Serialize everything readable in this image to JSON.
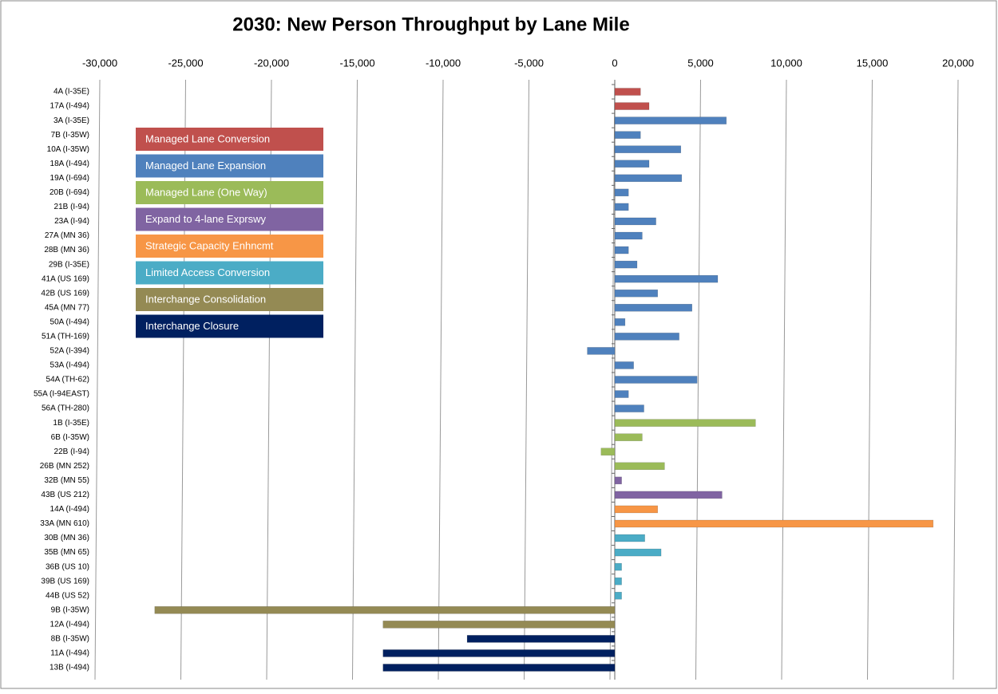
{
  "chart_data": {
    "type": "bar",
    "orientation": "horizontal",
    "title": "2030: New Person Throughput by Lane Mile",
    "categories": [
      "4A (I-35E)",
      "17A (I-494)",
      "3A (I-35E)",
      "7B (I-35W)",
      "10A (I-35W)",
      "18A (I-494)",
      "19A (I-694)",
      "20B (I-694)",
      "21B (I-94)",
      "23A (I-94)",
      "27A (MN 36)",
      "28B (MN 36)",
      "29B (I-35E)",
      "41A (US 169)",
      "42B (US 169)",
      "45A (MN 77)",
      "50A (I-494)",
      "51A (TH-169)",
      "52A (I-394)",
      "53A (I-494)",
      "54A (TH-62)",
      "55A (I-94EAST)",
      "56A (TH-280)",
      "1B (I-35E)",
      "6B (I-35W)",
      "22B (I-94)",
      "26B (MN 252)",
      "32B (MN 55)",
      "43B (US 212)",
      "14A (I-494)",
      "33A (MN 610)",
      "30B (MN 36)",
      "35B (MN 65)",
      "36B (US 10)",
      "39B (US 169)",
      "44B (US 52)",
      "9B (I-35W)",
      "12A (I-494)",
      "8B (I-35W)",
      "11A (I-494)",
      "13B (I-494)"
    ],
    "series": [
      {
        "name": "Managed Lane Conversion",
        "color": "#c0504d",
        "values": [
          1500,
          2000,
          null,
          null,
          null,
          null,
          null,
          null,
          null,
          null,
          null,
          null,
          null,
          null,
          null,
          null,
          null,
          null,
          null,
          null,
          null,
          null,
          null,
          null,
          null,
          null,
          null,
          null,
          null,
          null,
          null,
          null,
          null,
          null,
          null,
          null,
          null,
          null,
          null,
          null,
          null
        ]
      },
      {
        "name": "Managed Lane Expansion",
        "color": "#4f81bd",
        "values": [
          null,
          null,
          6500,
          1500,
          3850,
          2000,
          3900,
          800,
          800,
          2400,
          1600,
          800,
          1300,
          6000,
          2500,
          4500,
          600,
          3750,
          -1600,
          1100,
          4800,
          800,
          1700,
          null,
          null,
          null,
          null,
          null,
          null,
          null,
          null,
          null,
          null,
          null,
          null,
          null,
          null,
          null,
          null,
          null,
          null
        ]
      },
      {
        "name": "Managed Lane (One Way)",
        "color": "#9bbb59",
        "values": [
          null,
          null,
          null,
          null,
          null,
          null,
          null,
          null,
          null,
          null,
          null,
          null,
          null,
          null,
          null,
          null,
          null,
          null,
          null,
          null,
          null,
          null,
          null,
          8200,
          1600,
          -800,
          2900,
          null,
          null,
          null,
          null,
          null,
          null,
          null,
          null,
          null,
          null,
          null,
          null,
          null,
          null
        ]
      },
      {
        "name": "Expand to 4-lane Exprswy",
        "color": "#8064a2",
        "values": [
          null,
          null,
          null,
          null,
          null,
          null,
          null,
          null,
          null,
          null,
          null,
          null,
          null,
          null,
          null,
          null,
          null,
          null,
          null,
          null,
          null,
          null,
          null,
          null,
          null,
          null,
          null,
          400,
          6250,
          null,
          null,
          null,
          null,
          null,
          null,
          null,
          null,
          null,
          null,
          null,
          null
        ]
      },
      {
        "name": "Strategic Capacity Enhncmt",
        "color": "#f79646",
        "values": [
          null,
          null,
          null,
          null,
          null,
          null,
          null,
          null,
          null,
          null,
          null,
          null,
          null,
          null,
          null,
          null,
          null,
          null,
          null,
          null,
          null,
          null,
          null,
          null,
          null,
          null,
          null,
          null,
          null,
          2500,
          18550,
          null,
          null,
          null,
          null,
          null,
          null,
          null,
          null,
          null,
          null
        ]
      },
      {
        "name": "Limited Access Conversion",
        "color": "#4bacc6",
        "values": [
          null,
          null,
          null,
          null,
          null,
          null,
          null,
          null,
          null,
          null,
          null,
          null,
          null,
          null,
          null,
          null,
          null,
          null,
          null,
          null,
          null,
          null,
          null,
          null,
          null,
          null,
          null,
          null,
          null,
          null,
          null,
          1750,
          2700,
          400,
          400,
          400,
          null,
          null,
          null,
          null,
          null
        ]
      },
      {
        "name": "Interchange Consolidation",
        "color": "#948a54",
        "values": [
          null,
          null,
          null,
          null,
          null,
          null,
          null,
          null,
          null,
          null,
          null,
          null,
          null,
          null,
          null,
          null,
          null,
          null,
          null,
          null,
          null,
          null,
          null,
          null,
          null,
          null,
          null,
          null,
          null,
          null,
          null,
          null,
          null,
          null,
          null,
          null,
          -26800,
          -13500,
          null,
          null,
          null
        ]
      },
      {
        "name": "Interchange Closure",
        "color": "#002060",
        "values": [
          null,
          null,
          null,
          null,
          null,
          null,
          null,
          null,
          null,
          null,
          null,
          null,
          null,
          null,
          null,
          null,
          null,
          null,
          null,
          null,
          null,
          null,
          null,
          null,
          null,
          null,
          null,
          null,
          null,
          null,
          null,
          null,
          null,
          null,
          null,
          null,
          null,
          null,
          -8600,
          -13500,
          -13500
        ]
      }
    ],
    "xlim": [
      -30000,
      20000
    ],
    "xticks": [
      {
        "value": -30000,
        "label": "-30,000"
      },
      {
        "value": -25000,
        "label": "-25,000"
      },
      {
        "value": -20000,
        "label": "-20,000"
      },
      {
        "value": -15000,
        "label": "-15,000"
      },
      {
        "value": -10000,
        "label": "-10,000"
      },
      {
        "value": -5000,
        "label": "-5,000"
      },
      0,
      {
        "value": 5000,
        "label": "5,000"
      },
      {
        "value": 10000,
        "label": "10,000"
      },
      {
        "value": 15000,
        "label": "15,000"
      },
      {
        "value": 20000,
        "label": "20,000"
      }
    ],
    "grid": true,
    "legend": "upper left"
  }
}
